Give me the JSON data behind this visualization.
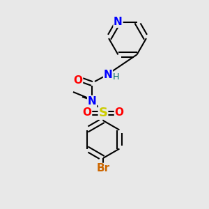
{
  "bg_color": "#e8e8e8",
  "bond_color": "#000000",
  "colors": {
    "N": "#0000ff",
    "O": "#ff0000",
    "S": "#cccc00",
    "Br": "#cc6600",
    "H": "#006666",
    "C": "#000000"
  },
  "line_width": 1.5,
  "figsize": [
    3.0,
    3.0
  ],
  "dpi": 100
}
